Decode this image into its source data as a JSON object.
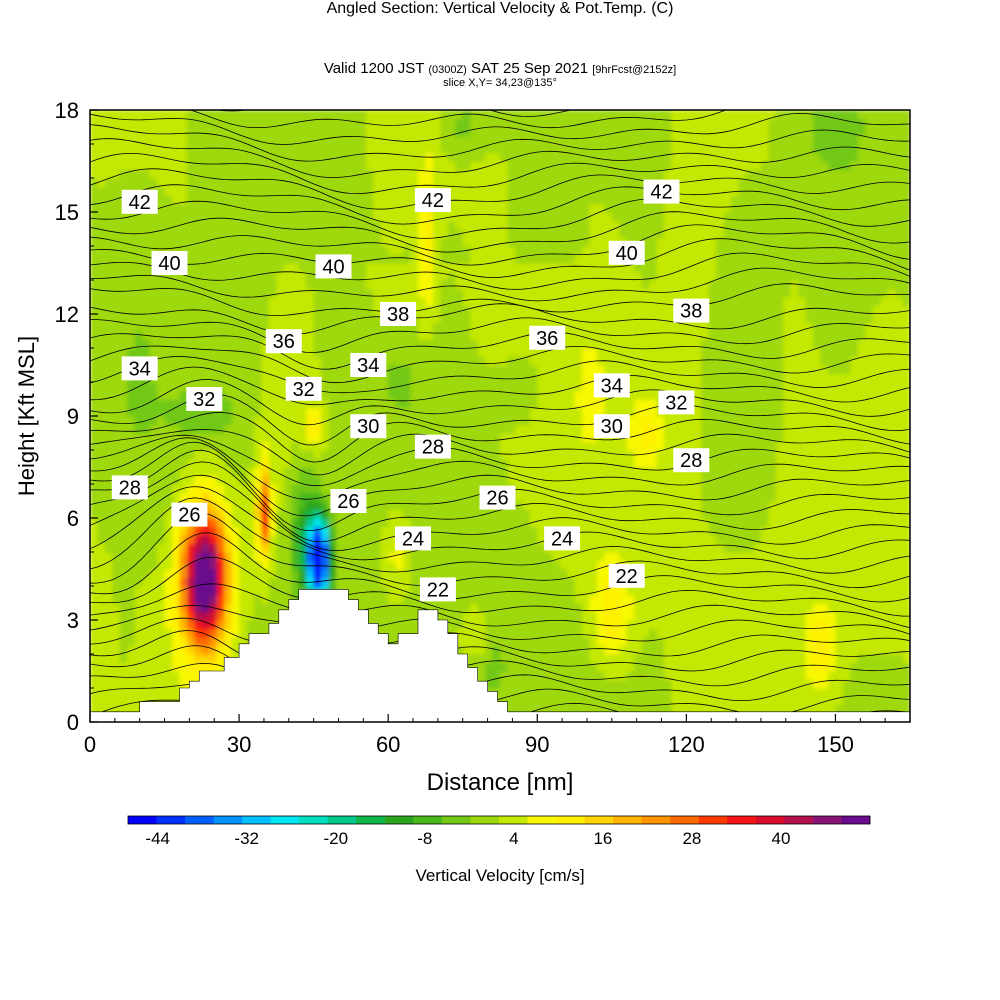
{
  "title": {
    "main": "Angled Section: Vertical Velocity & Pot.Temp.",
    "main_suffix": "(C)",
    "valid_prefix": "Valid 1200 JST",
    "valid_utc": "(0300Z)",
    "valid_date": "SAT 25 Sep 2021",
    "forecast": "[9hrFcst@2152z]",
    "slice": "slice X,Y= 34,23@135°"
  },
  "chart_data": {
    "type": "heatmap",
    "xlabel": "Distance [nm]",
    "ylabel": "Height [Kft MSL]",
    "xlim": [
      0,
      165
    ],
    "ylim": [
      0,
      18
    ],
    "x_ticks": [
      "0",
      "30",
      "60",
      "90",
      "120",
      "150"
    ],
    "x_tick_values": [
      0,
      30,
      60,
      90,
      120,
      150
    ],
    "y_ticks": [
      "0",
      "3",
      "6",
      "9",
      "12",
      "15",
      "18"
    ],
    "y_tick_values": [
      0,
      3,
      6,
      9,
      12,
      15,
      18
    ],
    "colorbar": {
      "label": "Vertical Velocity [cm/s]",
      "tick_labels": [
        "-44",
        "-32",
        "-20",
        "-8",
        "4",
        "16",
        "28",
        "40"
      ],
      "tick_values": [
        -44,
        -32,
        -20,
        -8,
        4,
        16,
        28,
        40
      ],
      "min": -48,
      "max": 52,
      "colors": [
        "#0000ff",
        "#0030ff",
        "#0060ff",
        "#0090ff",
        "#00c0ff",
        "#00e6f0",
        "#00e0c0",
        "#00c88c",
        "#10b448",
        "#2aa61e",
        "#4ab81a",
        "#72c814",
        "#9ed80c",
        "#c4e800",
        "#f8f800",
        "#fff000",
        "#ffd400",
        "#ffb400",
        "#ff9400",
        "#ff6a00",
        "#ff3a00",
        "#f41414",
        "#d80c2c",
        "#b4104c",
        "#881478",
        "#6a0a8c"
      ]
    },
    "isentropes_K": [
      22,
      24,
      26,
      28,
      30,
      32,
      34,
      36,
      38,
      40,
      42
    ],
    "isentrope_labels": [
      {
        "text": "42",
        "x": 10,
        "y": 15.3
      },
      {
        "text": "42",
        "x": 69,
        "y": 15.35
      },
      {
        "text": "42",
        "x": 115,
        "y": 15.6
      },
      {
        "text": "40",
        "x": 16,
        "y": 13.5
      },
      {
        "text": "40",
        "x": 49,
        "y": 13.4
      },
      {
        "text": "40",
        "x": 108,
        "y": 13.8
      },
      {
        "text": "38",
        "x": 62,
        "y": 12
      },
      {
        "text": "38",
        "x": 121,
        "y": 12.1
      },
      {
        "text": "36",
        "x": 39,
        "y": 11.2
      },
      {
        "text": "36",
        "x": 92,
        "y": 11.3
      },
      {
        "text": "34",
        "x": 10,
        "y": 10.4
      },
      {
        "text": "34",
        "x": 56,
        "y": 10.5
      },
      {
        "text": "34",
        "x": 105,
        "y": 9.9
      },
      {
        "text": "32",
        "x": 23,
        "y": 9.5
      },
      {
        "text": "32",
        "x": 43,
        "y": 9.8
      },
      {
        "text": "32",
        "x": 118,
        "y": 9.4
      },
      {
        "text": "30",
        "x": 56,
        "y": 8.7
      },
      {
        "text": "30",
        "x": 105,
        "y": 8.7
      },
      {
        "text": "28",
        "x": 8,
        "y": 6.9
      },
      {
        "text": "28",
        "x": 69,
        "y": 8.1
      },
      {
        "text": "28",
        "x": 121,
        "y": 7.7
      },
      {
        "text": "26",
        "x": 20,
        "y": 6.1
      },
      {
        "text": "26",
        "x": 52,
        "y": 6.5
      },
      {
        "text": "26",
        "x": 82,
        "y": 6.6
      },
      {
        "text": "24",
        "x": 65,
        "y": 5.4
      },
      {
        "text": "24",
        "x": 95,
        "y": 5.4
      },
      {
        "text": "22",
        "x": 70,
        "y": 3.9
      },
      {
        "text": "22",
        "x": 108,
        "y": 4.3
      }
    ],
    "terrain_profile": [
      [
        10,
        0.3
      ],
      [
        10,
        0.6
      ],
      [
        18,
        0.6
      ],
      [
        18,
        1.0
      ],
      [
        20,
        1.0
      ],
      [
        20,
        1.2
      ],
      [
        22,
        1.2
      ],
      [
        22,
        1.5
      ],
      [
        27,
        1.5
      ],
      [
        27,
        1.9
      ],
      [
        30,
        1.9
      ],
      [
        30,
        2.3
      ],
      [
        32,
        2.3
      ],
      [
        32,
        2.6
      ],
      [
        36,
        2.6
      ],
      [
        36,
        2.9
      ],
      [
        38,
        2.9
      ],
      [
        38,
        3.3
      ],
      [
        40,
        3.3
      ],
      [
        40,
        3.6
      ],
      [
        42,
        3.6
      ],
      [
        42,
        3.9
      ],
      [
        52,
        3.9
      ],
      [
        52,
        3.6
      ],
      [
        54,
        3.6
      ],
      [
        54,
        3.3
      ],
      [
        56,
        3.3
      ],
      [
        56,
        2.9
      ],
      [
        58,
        2.9
      ],
      [
        58,
        2.6
      ],
      [
        60,
        2.6
      ],
      [
        60,
        2.3
      ],
      [
        62,
        2.3
      ],
      [
        62,
        2.6
      ],
      [
        66,
        2.6
      ],
      [
        66,
        3.3
      ],
      [
        70,
        3.3
      ],
      [
        70,
        3.0
      ],
      [
        72,
        3.0
      ],
      [
        72,
        2.6
      ],
      [
        74,
        2.6
      ],
      [
        74,
        2.0
      ],
      [
        76,
        2.0
      ],
      [
        76,
        1.6
      ],
      [
        78,
        1.6
      ],
      [
        78,
        1.2
      ],
      [
        80,
        1.2
      ],
      [
        80,
        0.9
      ],
      [
        82,
        0.9
      ],
      [
        82,
        0.6
      ],
      [
        84,
        0.6
      ],
      [
        84,
        0.3
      ]
    ],
    "vertical_velocity_field_cm_s": [
      {
        "x": 23,
        "y": 4.2,
        "sx": 4.5,
        "sy": 2.0,
        "value": 56
      },
      {
        "x": 35,
        "y": 6.2,
        "sx": 1.3,
        "sy": 1.3,
        "value": 30
      },
      {
        "x": 45,
        "y": 8.7,
        "sx": 2.0,
        "sy": 0.6,
        "value": 10
      },
      {
        "x": 46,
        "y": 4.8,
        "sx": 2.2,
        "sy": 1.2,
        "value": -55
      },
      {
        "x": 43,
        "y": 5.5,
        "sx": 3.0,
        "sy": 2.0,
        "value": -12
      },
      {
        "x": 105,
        "y": 3.2,
        "sx": 4.0,
        "sy": 1.6,
        "value": 11
      },
      {
        "x": 112,
        "y": 8.5,
        "sx": 3.0,
        "sy": 1.0,
        "value": 9
      },
      {
        "x": 147,
        "y": 2.2,
        "sx": 3.0,
        "sy": 1.2,
        "value": 10
      },
      {
        "x": 68,
        "y": 14.0,
        "sx": 2.0,
        "sy": 2.5,
        "value": 9
      },
      {
        "x": 62,
        "y": 5.0,
        "sx": 3.0,
        "sy": 1.2,
        "value": 7
      },
      {
        "x": 78,
        "y": 2.5,
        "sx": 3.0,
        "sy": 0.8,
        "value": 7
      },
      {
        "x": 23,
        "y": 9.1,
        "sx": 6.0,
        "sy": 0.8,
        "value": -6
      },
      {
        "x": 75,
        "y": 17.6,
        "sx": 5.0,
        "sy": 1.0,
        "value": -6
      },
      {
        "x": 148,
        "y": 17.5,
        "sx": 4.0,
        "sy": 1.0,
        "value": -4
      },
      {
        "x": 80,
        "y": 1.8,
        "sx": 4.0,
        "sy": 1.2,
        "value": -5
      },
      {
        "x": 7,
        "y": 2.5,
        "sx": 2.0,
        "sy": 2.0,
        "value": -3
      },
      {
        "x": 62,
        "y": 10.0,
        "sx": 3.0,
        "sy": 1.0,
        "value": -4
      },
      {
        "x": 85,
        "y": 9.8,
        "sx": 6.0,
        "sy": 1.0,
        "value": -2.5
      }
    ]
  }
}
